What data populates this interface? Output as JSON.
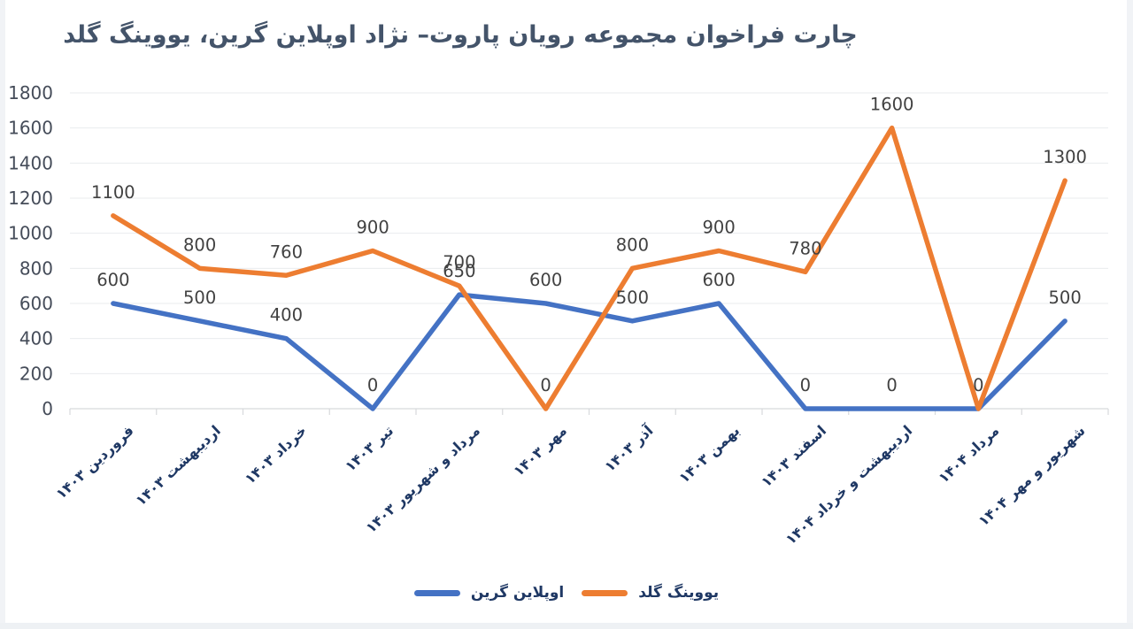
{
  "chart_data": {
    "type": "line",
    "title": "چارت فراخوان مجموعه رویان پاروت– نژاد اوپلاین گرین، یووینگ گلد",
    "categories": [
      "فروردین ۱۴۰۳",
      "اردیبهشت ۱۴۰۳",
      "خرداد ۱۴۰۳",
      "تیر ۱۴۰۳",
      "مرداد و شهریور ۱۴۰۳",
      "مهر ۱۴۰۳",
      "آذر ۱۴۰۳",
      "بهمن ۱۴۰۳",
      "اسفند ۱۴۰۳",
      "اردیبهشت و خرداد ۱۴۰۴",
      "مرداد ۱۴۰۴",
      "شهریور و مهر ۱۴۰۴"
    ],
    "series": [
      {
        "name": "اوپلاین گرین",
        "color": "#4472C4",
        "values": [
          600,
          500,
          400,
          0,
          650,
          600,
          500,
          600,
          0,
          0,
          0,
          500
        ],
        "hidden_labels": [
          10
        ]
      },
      {
        "name": "یووینگ گلد",
        "color": "#ED7D31",
        "values": [
          1100,
          800,
          760,
          900,
          700,
          0,
          800,
          900,
          780,
          1600,
          0,
          1300
        ],
        "hidden_labels": []
      }
    ],
    "y_ticks": [
      0,
      200,
      400,
      600,
      800,
      1000,
      1200,
      1400,
      1600,
      1800
    ],
    "ylim": [
      0,
      1800
    ],
    "grid": true,
    "legend_position": "bottom",
    "colors": {
      "title": "#44546A",
      "grid": "#e9ebee",
      "axis": "#d7d9dc",
      "tick_label": "#454c59",
      "data_label": "#414141",
      "category_label": "#1F3864"
    }
  }
}
